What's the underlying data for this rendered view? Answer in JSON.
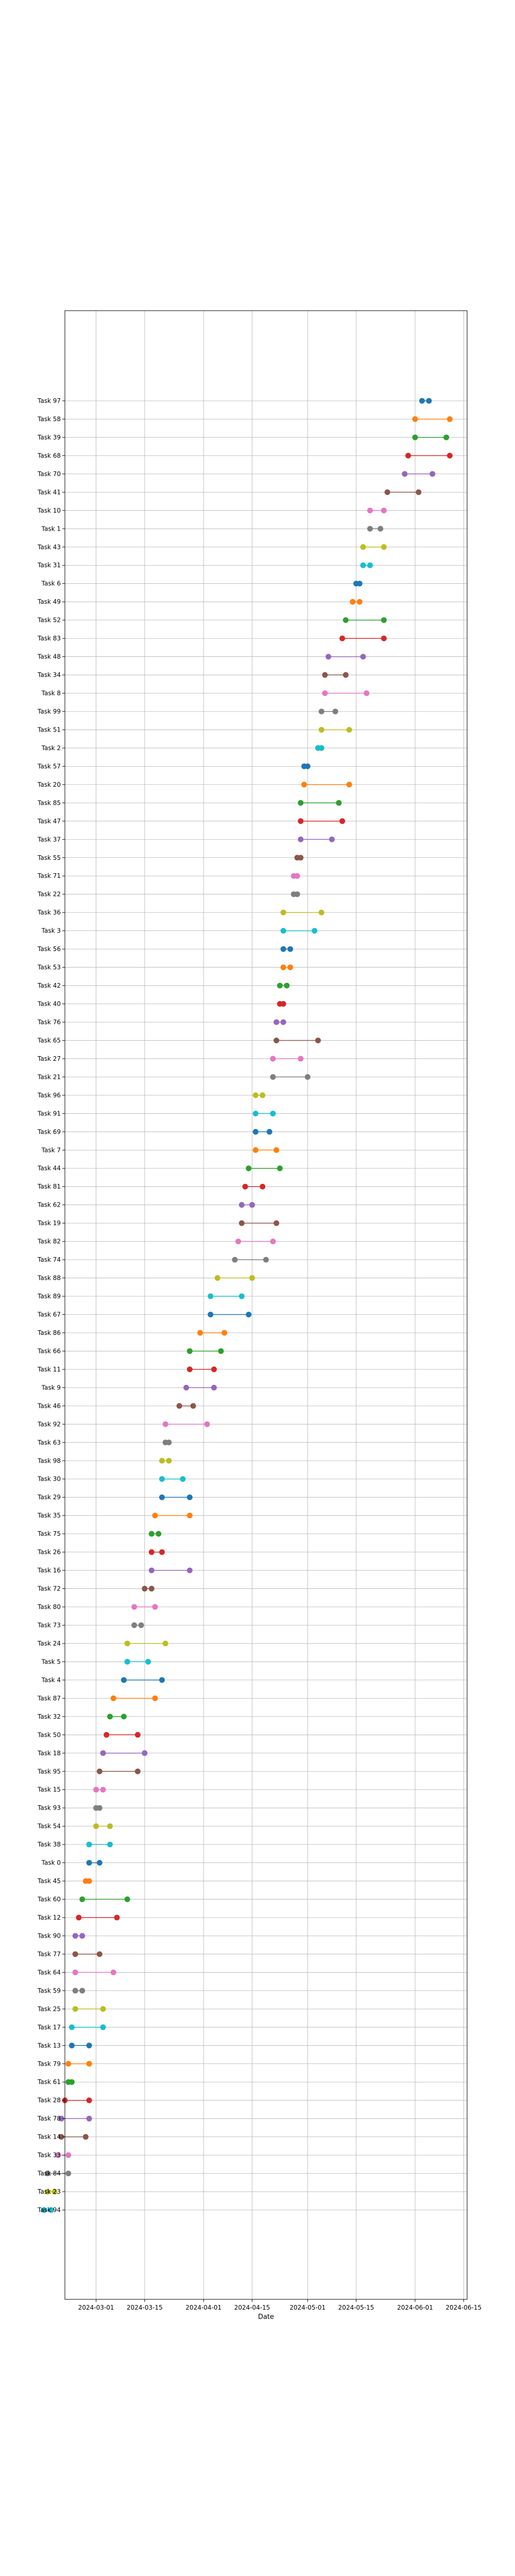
{
  "chart_data": {
    "type": "dumbbell",
    "title": "",
    "xlabel": "Date",
    "ylabel": "",
    "grid": true,
    "xlim": [
      "2024-02-21",
      "2024-06-16"
    ],
    "xticks": [
      "2024-03-01",
      "2024-03-15",
      "2024-04-01",
      "2024-04-15",
      "2024-05-01",
      "2024-05-15",
      "2024-06-01",
      "2024-06-15"
    ],
    "colors": [
      "#1f77b4",
      "#ff7f0e",
      "#2ca02c",
      "#d62728",
      "#9467bd",
      "#8c564b",
      "#e377c2",
      "#7f7f7f",
      "#bcbd22",
      "#17becf"
    ],
    "tasks": [
      {
        "label": "Task 97",
        "start": "2024-06-03",
        "end": "2024-06-05"
      },
      {
        "label": "Task 58",
        "start": "2024-06-01",
        "end": "2024-06-11"
      },
      {
        "label": "Task 39",
        "start": "2024-06-01",
        "end": "2024-06-10"
      },
      {
        "label": "Task 68",
        "start": "2024-05-30",
        "end": "2024-06-11"
      },
      {
        "label": "Task 70",
        "start": "2024-05-29",
        "end": "2024-06-06"
      },
      {
        "label": "Task 41",
        "start": "2024-05-24",
        "end": "2024-06-02"
      },
      {
        "label": "Task 10",
        "start": "2024-05-19",
        "end": "2024-05-23"
      },
      {
        "label": "Task 1",
        "start": "2024-05-19",
        "end": "2024-05-22"
      },
      {
        "label": "Task 43",
        "start": "2024-05-17",
        "end": "2024-05-23"
      },
      {
        "label": "Task 31",
        "start": "2024-05-17",
        "end": "2024-05-19"
      },
      {
        "label": "Task 6",
        "start": "2024-05-15",
        "end": "2024-05-16"
      },
      {
        "label": "Task 49",
        "start": "2024-05-14",
        "end": "2024-05-16"
      },
      {
        "label": "Task 52",
        "start": "2024-05-12",
        "end": "2024-05-23"
      },
      {
        "label": "Task 83",
        "start": "2024-05-11",
        "end": "2024-05-23"
      },
      {
        "label": "Task 48",
        "start": "2024-05-07",
        "end": "2024-05-17"
      },
      {
        "label": "Task 34",
        "start": "2024-05-06",
        "end": "2024-05-12"
      },
      {
        "label": "Task 8",
        "start": "2024-05-06",
        "end": "2024-05-18"
      },
      {
        "label": "Task 99",
        "start": "2024-05-05",
        "end": "2024-05-09"
      },
      {
        "label": "Task 51",
        "start": "2024-05-05",
        "end": "2024-05-13"
      },
      {
        "label": "Task 2",
        "start": "2024-05-04",
        "end": "2024-05-05"
      },
      {
        "label": "Task 57",
        "start": "2024-04-30",
        "end": "2024-05-01"
      },
      {
        "label": "Task 20",
        "start": "2024-04-30",
        "end": "2024-05-13"
      },
      {
        "label": "Task 85",
        "start": "2024-04-29",
        "end": "2024-05-10"
      },
      {
        "label": "Task 47",
        "start": "2024-04-29",
        "end": "2024-05-11"
      },
      {
        "label": "Task 37",
        "start": "2024-04-29",
        "end": "2024-05-08"
      },
      {
        "label": "Task 55",
        "start": "2024-04-28",
        "end": "2024-04-29"
      },
      {
        "label": "Task 71",
        "start": "2024-04-27",
        "end": "2024-04-28"
      },
      {
        "label": "Task 22",
        "start": "2024-04-27",
        "end": "2024-04-28"
      },
      {
        "label": "Task 36",
        "start": "2024-04-24",
        "end": "2024-05-05"
      },
      {
        "label": "Task 3",
        "start": "2024-04-24",
        "end": "2024-05-03"
      },
      {
        "label": "Task 56",
        "start": "2024-04-24",
        "end": "2024-04-26"
      },
      {
        "label": "Task 53",
        "start": "2024-04-24",
        "end": "2024-04-26"
      },
      {
        "label": "Task 42",
        "start": "2024-04-23",
        "end": "2024-04-25"
      },
      {
        "label": "Task 40",
        "start": "2024-04-23",
        "end": "2024-04-24"
      },
      {
        "label": "Task 76",
        "start": "2024-04-22",
        "end": "2024-04-24"
      },
      {
        "label": "Task 65",
        "start": "2024-04-22",
        "end": "2024-05-04"
      },
      {
        "label": "Task 27",
        "start": "2024-04-21",
        "end": "2024-04-29"
      },
      {
        "label": "Task 21",
        "start": "2024-04-21",
        "end": "2024-05-01"
      },
      {
        "label": "Task 96",
        "start": "2024-04-16",
        "end": "2024-04-18"
      },
      {
        "label": "Task 91",
        "start": "2024-04-16",
        "end": "2024-04-21"
      },
      {
        "label": "Task 69",
        "start": "2024-04-16",
        "end": "2024-04-20"
      },
      {
        "label": "Task 7",
        "start": "2024-04-16",
        "end": "2024-04-22"
      },
      {
        "label": "Task 44",
        "start": "2024-04-14",
        "end": "2024-04-23"
      },
      {
        "label": "Task 81",
        "start": "2024-04-13",
        "end": "2024-04-18"
      },
      {
        "label": "Task 62",
        "start": "2024-04-12",
        "end": "2024-04-15"
      },
      {
        "label": "Task 19",
        "start": "2024-04-12",
        "end": "2024-04-22"
      },
      {
        "label": "Task 82",
        "start": "2024-04-11",
        "end": "2024-04-21"
      },
      {
        "label": "Task 74",
        "start": "2024-04-10",
        "end": "2024-04-19"
      },
      {
        "label": "Task 88",
        "start": "2024-04-05",
        "end": "2024-04-15"
      },
      {
        "label": "Task 89",
        "start": "2024-04-03",
        "end": "2024-04-12"
      },
      {
        "label": "Task 67",
        "start": "2024-04-03",
        "end": "2024-04-14"
      },
      {
        "label": "Task 86",
        "start": "2024-03-31",
        "end": "2024-04-07"
      },
      {
        "label": "Task 66",
        "start": "2024-03-28",
        "end": "2024-04-06"
      },
      {
        "label": "Task 11",
        "start": "2024-03-28",
        "end": "2024-04-04"
      },
      {
        "label": "Task 9",
        "start": "2024-03-27",
        "end": "2024-04-04"
      },
      {
        "label": "Task 46",
        "start": "2024-03-25",
        "end": "2024-03-29"
      },
      {
        "label": "Task 92",
        "start": "2024-03-21",
        "end": "2024-04-02"
      },
      {
        "label": "Task 63",
        "start": "2024-03-21",
        "end": "2024-03-22"
      },
      {
        "label": "Task 98",
        "start": "2024-03-20",
        "end": "2024-03-22"
      },
      {
        "label": "Task 30",
        "start": "2024-03-20",
        "end": "2024-03-26"
      },
      {
        "label": "Task 29",
        "start": "2024-03-20",
        "end": "2024-03-28"
      },
      {
        "label": "Task 35",
        "start": "2024-03-18",
        "end": "2024-03-28"
      },
      {
        "label": "Task 75",
        "start": "2024-03-17",
        "end": "2024-03-19"
      },
      {
        "label": "Task 26",
        "start": "2024-03-17",
        "end": "2024-03-20"
      },
      {
        "label": "Task 16",
        "start": "2024-03-17",
        "end": "2024-03-28"
      },
      {
        "label": "Task 72",
        "start": "2024-03-15",
        "end": "2024-03-17"
      },
      {
        "label": "Task 80",
        "start": "2024-03-12",
        "end": "2024-03-18"
      },
      {
        "label": "Task 73",
        "start": "2024-03-12",
        "end": "2024-03-14"
      },
      {
        "label": "Task 24",
        "start": "2024-03-10",
        "end": "2024-03-21"
      },
      {
        "label": "Task 5",
        "start": "2024-03-10",
        "end": "2024-03-16"
      },
      {
        "label": "Task 4",
        "start": "2024-03-09",
        "end": "2024-03-20"
      },
      {
        "label": "Task 87",
        "start": "2024-03-06",
        "end": "2024-03-18"
      },
      {
        "label": "Task 32",
        "start": "2024-03-05",
        "end": "2024-03-09"
      },
      {
        "label": "Task 50",
        "start": "2024-03-04",
        "end": "2024-03-13"
      },
      {
        "label": "Task 18",
        "start": "2024-03-03",
        "end": "2024-03-15"
      },
      {
        "label": "Task 95",
        "start": "2024-03-02",
        "end": "2024-03-13"
      },
      {
        "label": "Task 15",
        "start": "2024-03-01",
        "end": "2024-03-03"
      },
      {
        "label": "Task 93",
        "start": "2024-03-01",
        "end": "2024-03-02"
      },
      {
        "label": "Task 54",
        "start": "2024-03-01",
        "end": "2024-03-05"
      },
      {
        "label": "Task 38",
        "start": "2024-02-28",
        "end": "2024-03-05"
      },
      {
        "label": "Task 0",
        "start": "2024-02-28",
        "end": "2024-03-02"
      },
      {
        "label": "Task 45",
        "start": "2024-02-27",
        "end": "2024-02-28"
      },
      {
        "label": "Task 60",
        "start": "2024-02-26",
        "end": "2024-03-10"
      },
      {
        "label": "Task 12",
        "start": "2024-02-25",
        "end": "2024-03-07"
      },
      {
        "label": "Task 90",
        "start": "2024-02-24",
        "end": "2024-02-26"
      },
      {
        "label": "Task 77",
        "start": "2024-02-24",
        "end": "2024-03-02"
      },
      {
        "label": "Task 64",
        "start": "2024-02-24",
        "end": "2024-03-06"
      },
      {
        "label": "Task 59",
        "start": "2024-02-24",
        "end": "2024-02-26"
      },
      {
        "label": "Task 25",
        "start": "2024-02-24",
        "end": "2024-03-03"
      },
      {
        "label": "Task 17",
        "start": "2024-02-23",
        "end": "2024-03-03"
      },
      {
        "label": "Task 13",
        "start": "2024-02-23",
        "end": "2024-02-28"
      },
      {
        "label": "Task 79",
        "start": "2024-02-22",
        "end": "2024-02-28"
      },
      {
        "label": "Task 61",
        "start": "2024-02-22",
        "end": "2024-02-23"
      },
      {
        "label": "Task 28",
        "start": "2024-02-21",
        "end": "2024-02-28"
      },
      {
        "label": "Task 78",
        "start": "2024-02-20",
        "end": "2024-02-28"
      },
      {
        "label": "Task 14",
        "start": "2024-02-20",
        "end": "2024-02-27"
      },
      {
        "label": "Task 33",
        "start": "2024-02-19",
        "end": "2024-02-22"
      },
      {
        "label": "Task 84",
        "start": "2024-02-16",
        "end": "2024-02-22"
      },
      {
        "label": "Task 23",
        "start": "2024-02-16",
        "end": "2024-02-18"
      },
      {
        "label": "Task 94",
        "start": "2024-02-15",
        "end": "2024-02-17"
      }
    ]
  }
}
